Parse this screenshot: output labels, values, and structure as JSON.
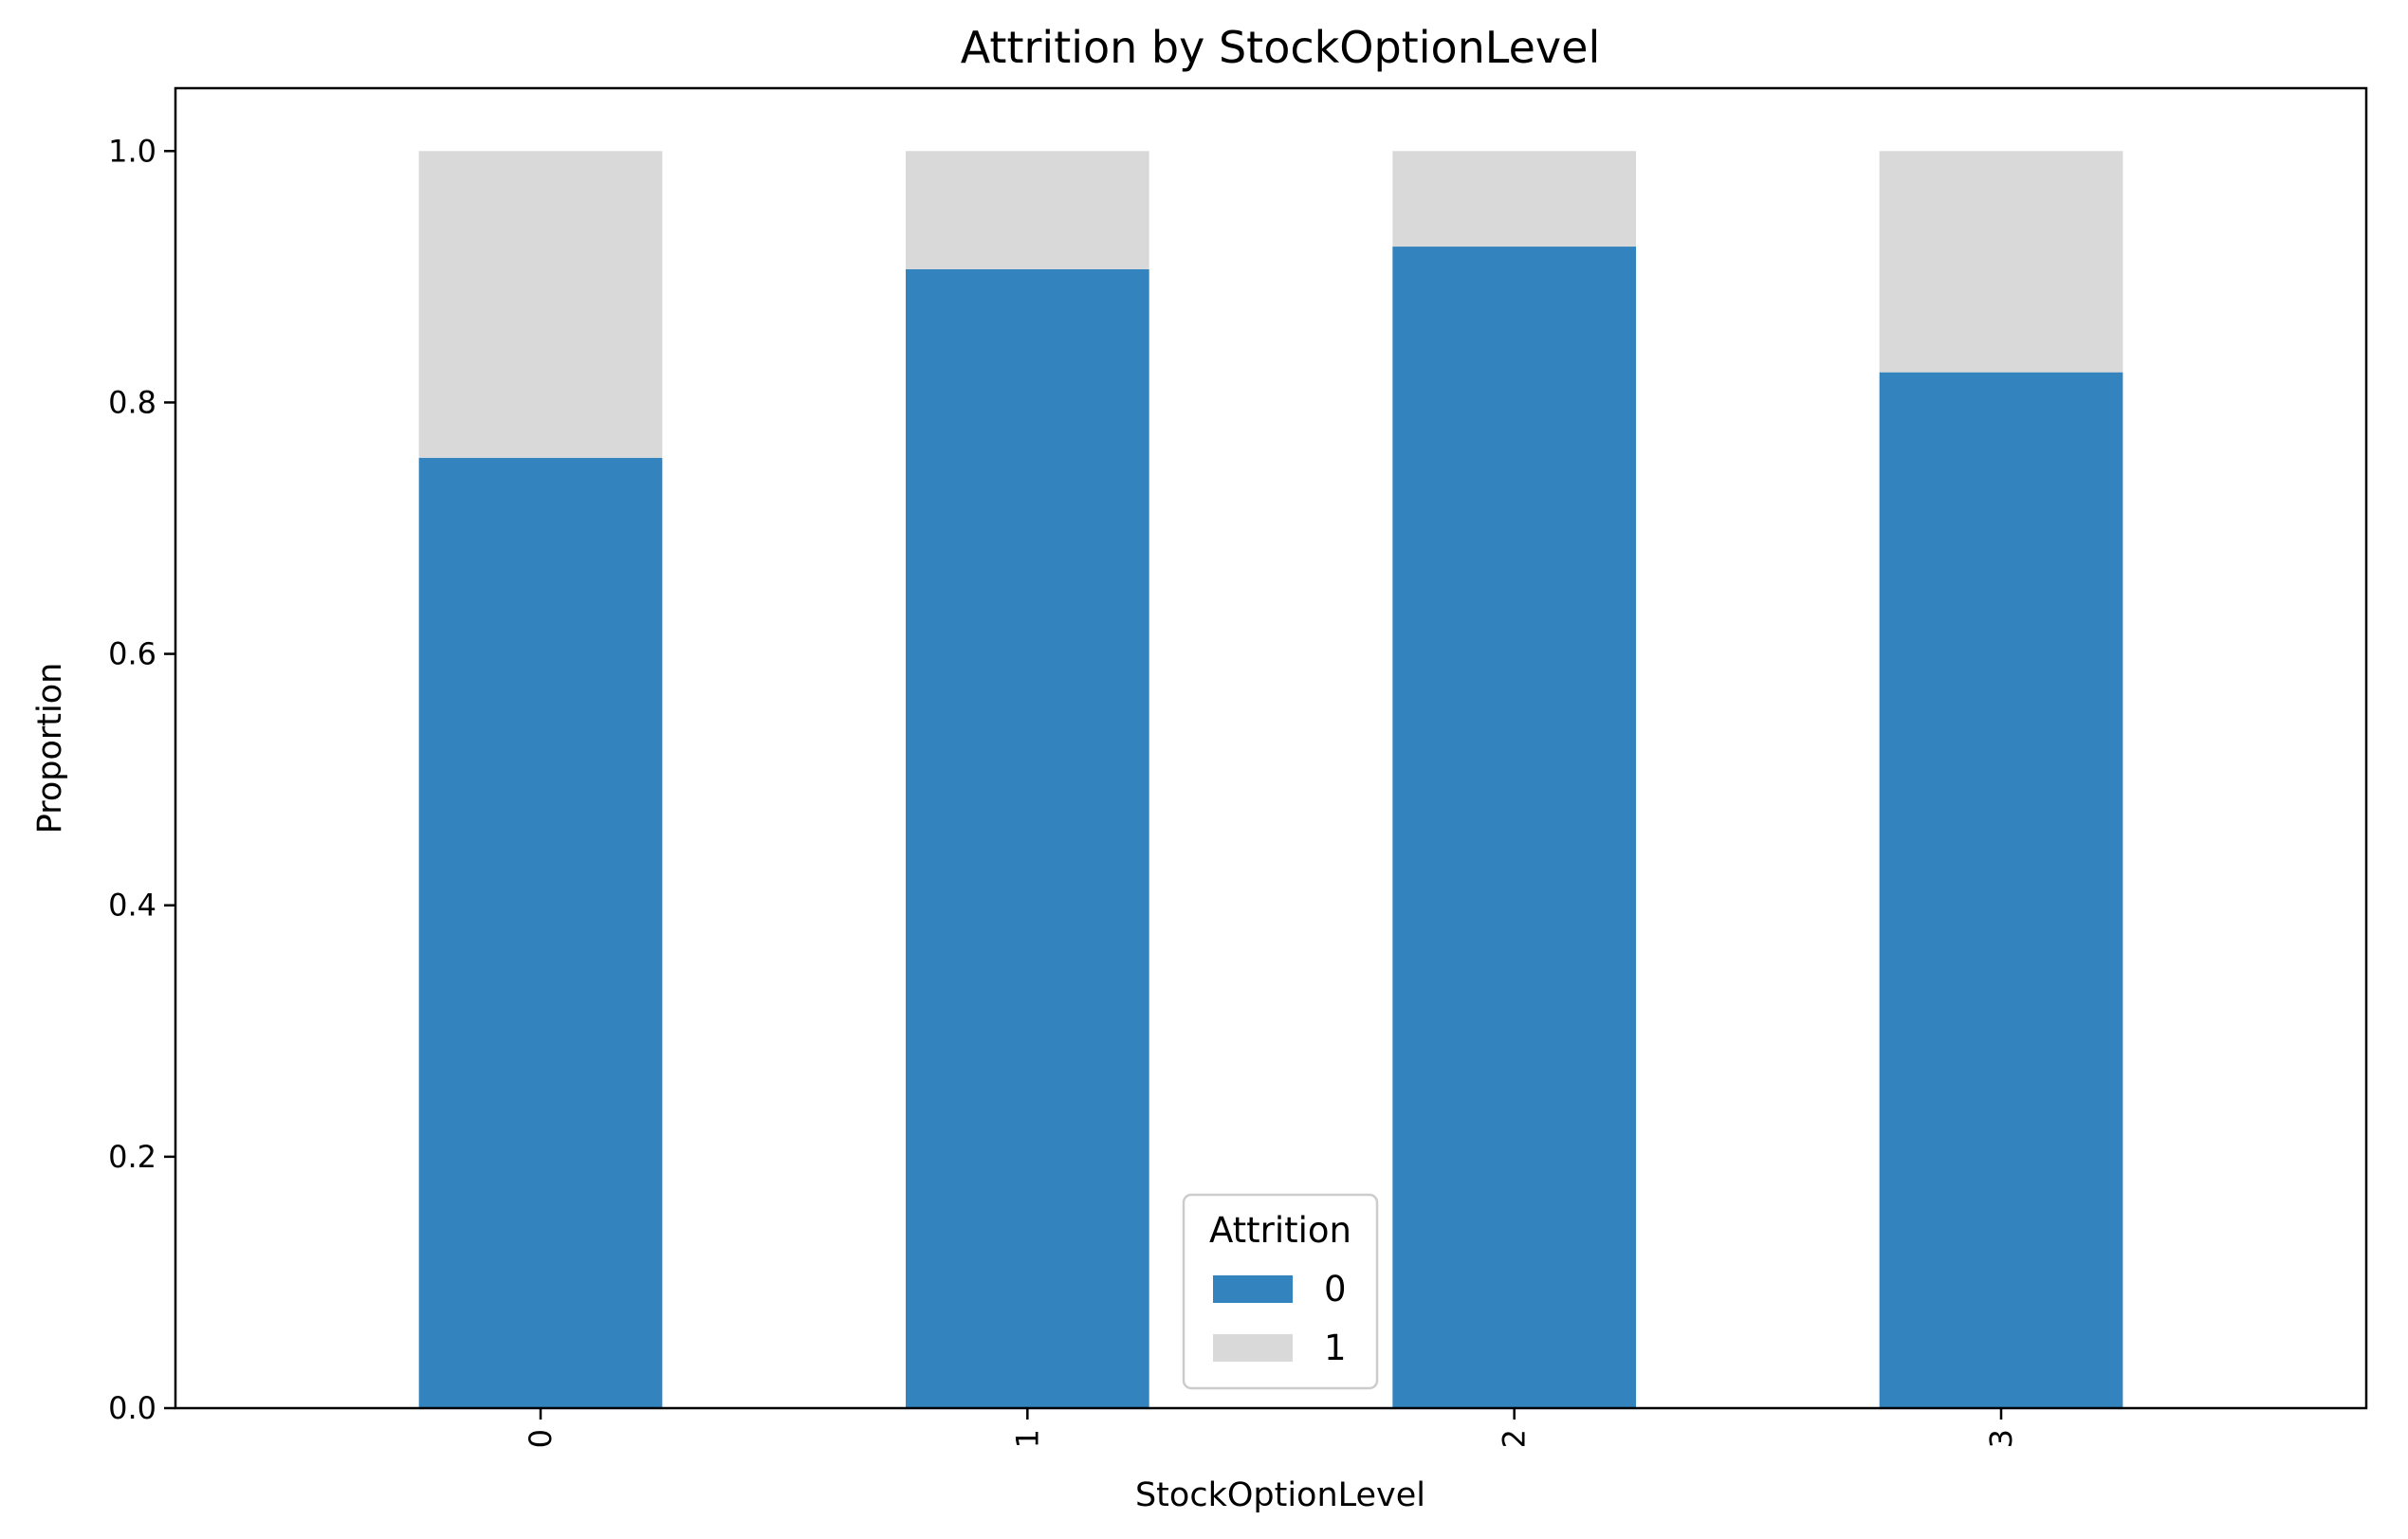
{
  "chart_data": {
    "type": "bar",
    "stacked": true,
    "title": "Attrition by StockOptionLevel",
    "xlabel": "StockOptionLevel",
    "ylabel": "Proportion",
    "categories": [
      "0",
      "1",
      "2",
      "3"
    ],
    "series": [
      {
        "name": "0",
        "values": [
          0.756,
          0.906,
          0.924,
          0.824
        ],
        "color": "#3383be"
      },
      {
        "name": "1",
        "values": [
          0.244,
          0.094,
          0.076,
          0.176
        ],
        "color": "#d9d9d9"
      }
    ],
    "ylim": [
      0,
      1.05
    ],
    "yticks": [
      "0.0",
      "0.2",
      "0.4",
      "0.6",
      "0.8",
      "1.0"
    ],
    "grid": false,
    "legend": {
      "title": "Attrition",
      "placement": "lower-center"
    }
  }
}
